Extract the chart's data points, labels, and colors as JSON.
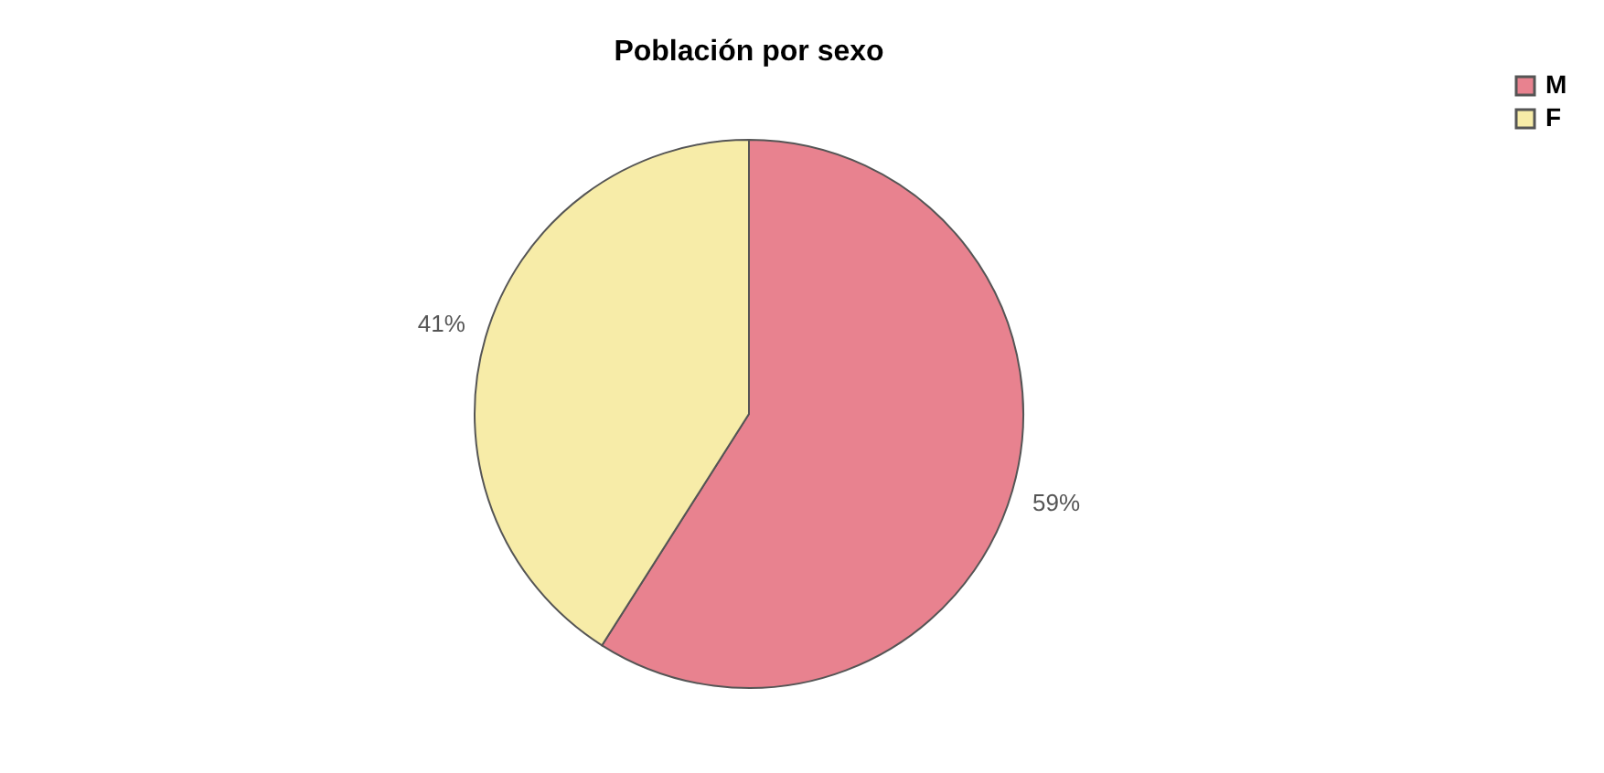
{
  "chart_data": {
    "type": "pie",
    "title": "Población por sexo",
    "categories": [
      "M",
      "F"
    ],
    "values": [
      59,
      41
    ],
    "colors": [
      "#e8828f",
      "#f7eca8"
    ],
    "value_labels": [
      "59%",
      "41%"
    ],
    "legend": "right"
  }
}
